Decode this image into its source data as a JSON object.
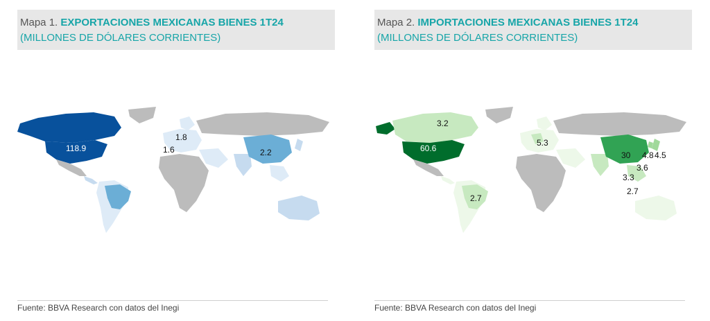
{
  "colors": {
    "title_accent": "#17a5a8",
    "land_gray": "#bcbcbc",
    "exports_scale": [
      "#deebf7",
      "#c6dbef",
      "#9ecae1",
      "#6baed6",
      "#3182bd",
      "#08519c"
    ],
    "imports_scale": [
      "#edf8e9",
      "#c7e9c0",
      "#a1d99b",
      "#74c476",
      "#31a354",
      "#006d2c"
    ]
  },
  "maps": [
    {
      "title_prefix": "Mapa 1.",
      "title_main": "EXPORTACIONES MEXICANAS BIENES 1T24",
      "subtitle": "(MILLONES DE DÓLARES CORRIENTES)",
      "source": "Fuente: BBVA Research con datos del Inegi",
      "labels": [
        {
          "country": "Estados Unidos",
          "value": "118.9"
        },
        {
          "country": "Alemania",
          "value": "1.8"
        },
        {
          "country": "España",
          "value": "1.6"
        },
        {
          "country": "China",
          "value": "2.2"
        }
      ]
    },
    {
      "title_prefix": "Mapa 2.",
      "title_main": "IMPORTACIONES MEXICANAS BIENES 1T24",
      "subtitle": "(MILLONES DE DÓLARES CORRIENTES)",
      "source": "Fuente: BBVA Research con datos del Inegi",
      "labels": [
        {
          "country": "Canadá",
          "value": "3.2"
        },
        {
          "country": "Estados Unidos",
          "value": "60.6"
        },
        {
          "country": "Alemania",
          "value": "5.3"
        },
        {
          "country": "China",
          "value": "30"
        },
        {
          "country": "Corea del Sur",
          "value": "4.8"
        },
        {
          "country": "Japón",
          "value": "4.5"
        },
        {
          "country": "Taiwán",
          "value": "3.6"
        },
        {
          "country": "Vietnam",
          "value": "3.3"
        },
        {
          "country": "Malasia",
          "value": "2.7"
        },
        {
          "country": "Brasil",
          "value": "2.7"
        }
      ]
    }
  ]
}
